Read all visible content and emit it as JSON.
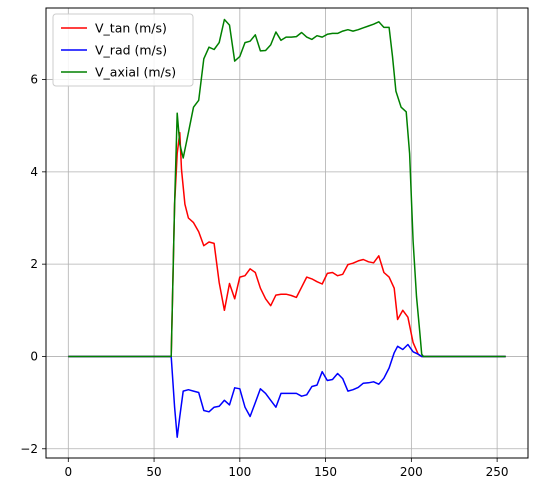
{
  "chart_data": {
    "type": "line",
    "title": "",
    "xlabel": "",
    "ylabel": "",
    "xlim": [
      -13,
      268
    ],
    "ylim": [
      -2.2,
      7.55
    ],
    "xticks": [
      0,
      50,
      100,
      150,
      200,
      250
    ],
    "yticks": [
      -2,
      0,
      2,
      4,
      6
    ],
    "grid": true,
    "legend_position": "top-left",
    "series": [
      {
        "name": "V_tan (m/s)",
        "color": "#ff0000",
        "points": [
          [
            0,
            0
          ],
          [
            20,
            0
          ],
          [
            40,
            0
          ],
          [
            55,
            0
          ],
          [
            60,
            0
          ],
          [
            62,
            3.3
          ],
          [
            63.5,
            4.4
          ],
          [
            65,
            4.85
          ],
          [
            66,
            4.05
          ],
          [
            68,
            3.3
          ],
          [
            70,
            3.0
          ],
          [
            73,
            2.9
          ],
          [
            76,
            2.7
          ],
          [
            79,
            2.4
          ],
          [
            82,
            2.48
          ],
          [
            85,
            2.45
          ],
          [
            88,
            1.6
          ],
          [
            91,
            1.0
          ],
          [
            94,
            1.58
          ],
          [
            97,
            1.25
          ],
          [
            100,
            1.72
          ],
          [
            103,
            1.75
          ],
          [
            106,
            1.9
          ],
          [
            109,
            1.82
          ],
          [
            112,
            1.48
          ],
          [
            115,
            1.25
          ],
          [
            118,
            1.1
          ],
          [
            121,
            1.33
          ],
          [
            124,
            1.35
          ],
          [
            127,
            1.35
          ],
          [
            130,
            1.32
          ],
          [
            133,
            1.28
          ],
          [
            136,
            1.5
          ],
          [
            139,
            1.72
          ],
          [
            142,
            1.68
          ],
          [
            145,
            1.62
          ],
          [
            148,
            1.57
          ],
          [
            151,
            1.8
          ],
          [
            154,
            1.82
          ],
          [
            157,
            1.75
          ],
          [
            160,
            1.78
          ],
          [
            163,
            1.99
          ],
          [
            166,
            2.02
          ],
          [
            169,
            2.07
          ],
          [
            172,
            2.1
          ],
          [
            175,
            2.05
          ],
          [
            178,
            2.03
          ],
          [
            181,
            2.18
          ],
          [
            184,
            1.82
          ],
          [
            187,
            1.72
          ],
          [
            190,
            1.48
          ],
          [
            192,
            0.8
          ],
          [
            195,
            1.0
          ],
          [
            198,
            0.85
          ],
          [
            201,
            0.3
          ],
          [
            204,
            0.05
          ],
          [
            206,
            0
          ],
          [
            220,
            0
          ],
          [
            240,
            0
          ],
          [
            255,
            0
          ]
        ]
      },
      {
        "name": "V_rad (m/s)",
        "color": "#0000ff",
        "points": [
          [
            0,
            0
          ],
          [
            20,
            0
          ],
          [
            40,
            0
          ],
          [
            55,
            0
          ],
          [
            60,
            0
          ],
          [
            62,
            -1.1
          ],
          [
            63.5,
            -1.75
          ],
          [
            65,
            -1.3
          ],
          [
            67,
            -0.75
          ],
          [
            70,
            -0.72
          ],
          [
            73,
            -0.75
          ],
          [
            76,
            -0.78
          ],
          [
            79,
            -1.17
          ],
          [
            82,
            -1.2
          ],
          [
            85,
            -1.1
          ],
          [
            88,
            -1.08
          ],
          [
            91,
            -0.95
          ],
          [
            94,
            -1.05
          ],
          [
            97,
            -0.68
          ],
          [
            100,
            -0.7
          ],
          [
            103,
            -1.1
          ],
          [
            106,
            -1.3
          ],
          [
            109,
            -1.0
          ],
          [
            112,
            -0.7
          ],
          [
            115,
            -0.8
          ],
          [
            118,
            -0.95
          ],
          [
            121,
            -1.1
          ],
          [
            124,
            -0.8
          ],
          [
            127,
            -0.8
          ],
          [
            130,
            -0.8
          ],
          [
            133,
            -0.8
          ],
          [
            136,
            -0.86
          ],
          [
            139,
            -0.83
          ],
          [
            142,
            -0.65
          ],
          [
            145,
            -0.62
          ],
          [
            148,
            -0.33
          ],
          [
            151,
            -0.52
          ],
          [
            154,
            -0.5
          ],
          [
            157,
            -0.37
          ],
          [
            160,
            -0.48
          ],
          [
            163,
            -0.75
          ],
          [
            166,
            -0.72
          ],
          [
            169,
            -0.67
          ],
          [
            172,
            -0.58
          ],
          [
            175,
            -0.57
          ],
          [
            178,
            -0.55
          ],
          [
            181,
            -0.6
          ],
          [
            184,
            -0.47
          ],
          [
            187,
            -0.25
          ],
          [
            190,
            0.08
          ],
          [
            192,
            0.22
          ],
          [
            195,
            0.15
          ],
          [
            198,
            0.26
          ],
          [
            201,
            0.1
          ],
          [
            204,
            0.05
          ],
          [
            206,
            0
          ],
          [
            220,
            0
          ],
          [
            240,
            0
          ],
          [
            255,
            0
          ]
        ]
      },
      {
        "name": "V_axial (m/s)",
        "color": "#008000",
        "points": [
          [
            0,
            0
          ],
          [
            20,
            0
          ],
          [
            40,
            0
          ],
          [
            55,
            0
          ],
          [
            60,
            0
          ],
          [
            62,
            3.3
          ],
          [
            63.5,
            5.27
          ],
          [
            65,
            4.6
          ],
          [
            67,
            4.3
          ],
          [
            70,
            4.85
          ],
          [
            73,
            5.4
          ],
          [
            76,
            5.55
          ],
          [
            79,
            6.45
          ],
          [
            82,
            6.7
          ],
          [
            85,
            6.65
          ],
          [
            88,
            6.8
          ],
          [
            91,
            7.3
          ],
          [
            94,
            7.18
          ],
          [
            97,
            6.4
          ],
          [
            100,
            6.5
          ],
          [
            103,
            6.8
          ],
          [
            106,
            6.83
          ],
          [
            109,
            6.97
          ],
          [
            112,
            6.62
          ],
          [
            115,
            6.63
          ],
          [
            118,
            6.75
          ],
          [
            121,
            7.03
          ],
          [
            124,
            6.85
          ],
          [
            127,
            6.92
          ],
          [
            130,
            6.92
          ],
          [
            133,
            6.93
          ],
          [
            136,
            7.02
          ],
          [
            139,
            6.92
          ],
          [
            142,
            6.87
          ],
          [
            145,
            6.95
          ],
          [
            148,
            6.92
          ],
          [
            151,
            6.98
          ],
          [
            154,
            7.0
          ],
          [
            157,
            7.0
          ],
          [
            160,
            7.05
          ],
          [
            163,
            7.08
          ],
          [
            166,
            7.05
          ],
          [
            169,
            7.08
          ],
          [
            172,
            7.12
          ],
          [
            175,
            7.16
          ],
          [
            178,
            7.2
          ],
          [
            181,
            7.25
          ],
          [
            184,
            7.13
          ],
          [
            187,
            7.13
          ],
          [
            189,
            6.5
          ],
          [
            191,
            5.75
          ],
          [
            194,
            5.4
          ],
          [
            197,
            5.3
          ],
          [
            199,
            4.4
          ],
          [
            201,
            2.5
          ],
          [
            203,
            1.3
          ],
          [
            205,
            0.5
          ],
          [
            206,
            0.05
          ],
          [
            207,
            0
          ],
          [
            220,
            0
          ],
          [
            240,
            0
          ],
          [
            255,
            0
          ]
        ]
      }
    ]
  }
}
